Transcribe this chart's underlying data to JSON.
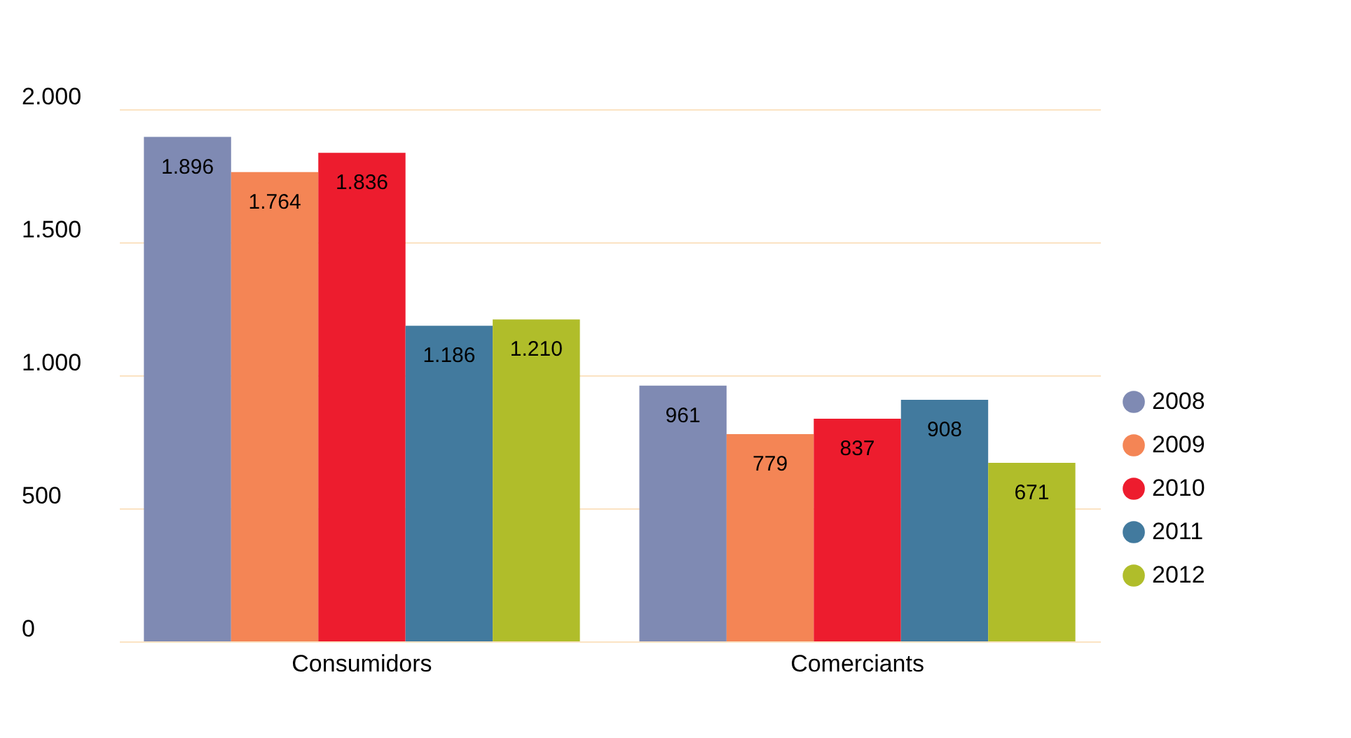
{
  "chart_data": {
    "type": "bar",
    "categories": [
      "Consumidors",
      "Comerciants"
    ],
    "series": [
      {
        "name": "2008",
        "color": "#7f8ab3",
        "values": [
          1896,
          961
        ],
        "value_labels": [
          "1.896",
          "961"
        ]
      },
      {
        "name": "2009",
        "color": "#f48555",
        "values": [
          1764,
          779
        ],
        "value_labels": [
          "1.764",
          "779"
        ]
      },
      {
        "name": "2010",
        "color": "#ed1c2e",
        "values": [
          1836,
          837
        ],
        "value_labels": [
          "1.836",
          "837"
        ]
      },
      {
        "name": "2011",
        "color": "#427a9e",
        "values": [
          1186,
          908
        ],
        "value_labels": [
          "1.186",
          "908"
        ]
      },
      {
        "name": "2012",
        "color": "#b0bd2a",
        "values": [
          1210,
          671
        ],
        "value_labels": [
          "1.210",
          "671"
        ]
      }
    ],
    "ylim": [
      0,
      2000
    ],
    "yticks": [
      {
        "value": 0,
        "label": "0"
      },
      {
        "value": 500,
        "label": "500"
      },
      {
        "value": 1000,
        "label": "1.000"
      },
      {
        "value": 1500,
        "label": "1.500"
      },
      {
        "value": 2000,
        "label": "2.000"
      }
    ],
    "grid": "y",
    "legend": "bottom right"
  }
}
